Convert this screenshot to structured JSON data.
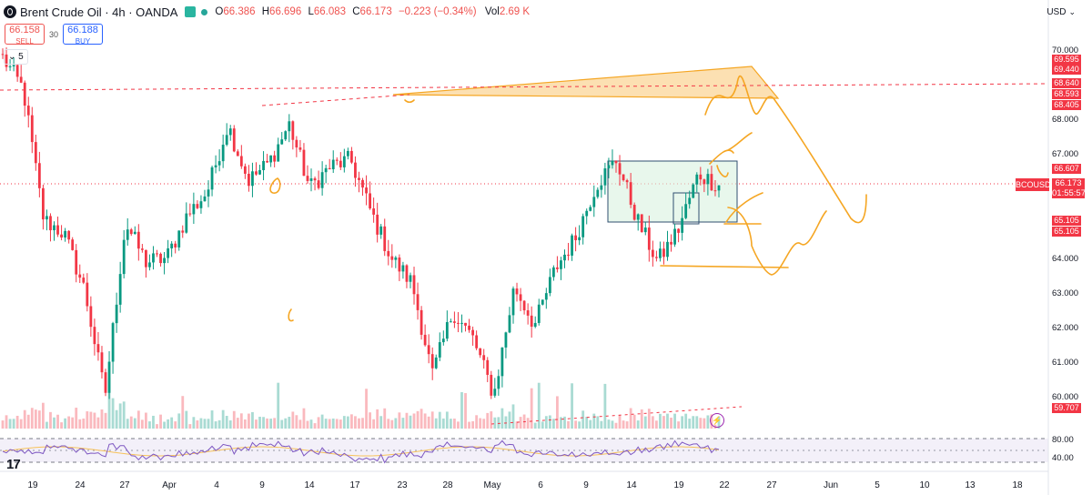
{
  "header": {
    "symbol_title": "Brent Crude Oil · 4h · OANDA",
    "open_label": "O",
    "open": "66.386",
    "high_label": "H",
    "high": "66.696",
    "low_label": "L",
    "low": "66.083",
    "close_label": "C",
    "close": "66.173",
    "change": "−0.223 (−0.34%)",
    "vol_label": "Vol",
    "vol": "2.69 K"
  },
  "trade": {
    "sell_price": "66.158",
    "sell_label": "SELL",
    "spread": "30",
    "buy_price": "66.188",
    "buy_label": "BUY"
  },
  "indicator_collapse": "5",
  "currency": "USD",
  "price_tag": {
    "symbol": "BCOUSD",
    "price": "66.173",
    "countdown": "01:55:57"
  },
  "y_ticks": [
    "70.000",
    "68.000",
    "67.000",
    "64.000",
    "63.000",
    "62.000",
    "61.000",
    "60.000"
  ],
  "price_labels": [
    "69.595",
    "69.440",
    "68.640",
    "68.593",
    "68.405",
    "66.607",
    "65.105",
    "65.105",
    "59.707"
  ],
  "rsi_ticks": [
    "80.00",
    "40.00"
  ],
  "x_ticks": [
    "19",
    "24",
    "27",
    "Apr",
    "4",
    "9",
    "14",
    "17",
    "23",
    "28",
    "May",
    "6",
    "9",
    "14",
    "19",
    "22",
    "27",
    "Jun",
    "5",
    "10",
    "13",
    "18"
  ],
  "colors": {
    "up": "#089981",
    "down": "#f23645",
    "drawing": "#f5a623",
    "box_fill": "#d9f2e0",
    "box_stroke": "#2f4f6f",
    "rsi_line": "#7e57c2",
    "rsi_ma": "#f7c25a"
  },
  "chart_data": {
    "type": "candlestick",
    "interval": "4h",
    "ylim": [
      59.5,
      70.4
    ],
    "approx_closes": [
      69.8,
      68.9,
      65.2,
      64.8,
      63.2,
      60.2,
      65.1,
      64.0,
      64.1,
      65.3,
      66.0,
      67.9,
      66.3,
      66.8,
      67.9,
      66.1,
      66.7,
      66.9,
      65.4,
      64.1,
      63.4,
      60.8,
      62.6,
      61.8,
      60.2,
      63.3,
      62.2,
      63.8,
      64.7,
      66.2,
      66.9,
      65.2,
      64.0,
      64.9,
      66.5,
      66.17
    ],
    "annotations": {
      "resistance_zone": [
        68.4,
        69.6
      ],
      "range_box": [
        65.1,
        66.6
      ],
      "current_price": 66.173
    }
  }
}
